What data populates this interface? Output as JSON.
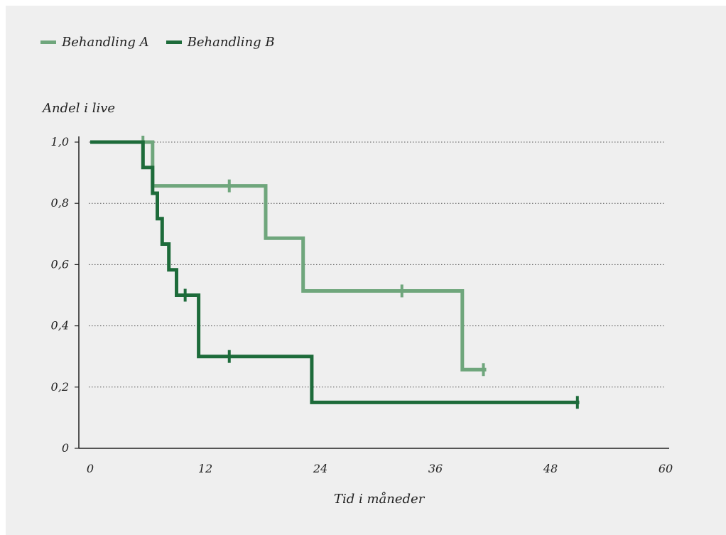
{
  "chart_data": {
    "type": "line",
    "step": true,
    "xlabel": "Tid i måneder",
    "ylabel": "Andel i live",
    "xlim": [
      0,
      60
    ],
    "ylim": [
      0,
      1.0
    ],
    "xticks": [
      0,
      12,
      24,
      36,
      48,
      60
    ],
    "xtick_labels": [
      "0",
      "12",
      "24",
      "36",
      "48",
      "60"
    ],
    "yticks": [
      0,
      0.2,
      0.4,
      0.6,
      0.8,
      1.0
    ],
    "ytick_labels": [
      "0",
      "0,2",
      "0,4",
      "0,6",
      "0,8",
      "1,0"
    ],
    "grid": "horizontal dotted",
    "legend_position": "top-left",
    "series": [
      {
        "name": "Behandling A",
        "color": "#6fa67c",
        "x": [
          0,
          6.5,
          6.5,
          18.3,
          18.3,
          22.2,
          22.2,
          38.8,
          38.8,
          41.3
        ],
        "y": [
          1.0,
          1.0,
          0.857,
          0.857,
          0.686,
          0.686,
          0.514,
          0.514,
          0.257,
          0.257
        ],
        "censored": [
          {
            "x": 5.5,
            "y": 1.0
          },
          {
            "x": 14.5,
            "y": 0.857
          },
          {
            "x": 32.5,
            "y": 0.514
          },
          {
            "x": 41.0,
            "y": 0.257
          }
        ]
      },
      {
        "name": "Behandling B",
        "color": "#1d6b3a",
        "x": [
          0,
          5.5,
          5.5,
          6.5,
          6.5,
          7.0,
          7.0,
          7.5,
          7.5,
          8.2,
          8.2,
          9.0,
          9.0,
          11.3,
          11.3,
          23.1,
          23.1,
          51.0
        ],
        "y": [
          1.0,
          1.0,
          0.917,
          0.917,
          0.833,
          0.833,
          0.75,
          0.75,
          0.667,
          0.667,
          0.583,
          0.583,
          0.5,
          0.5,
          0.3,
          0.3,
          0.15,
          0.15
        ],
        "censored": [
          {
            "x": 9.9,
            "y": 0.5
          },
          {
            "x": 14.5,
            "y": 0.3
          },
          {
            "x": 50.8,
            "y": 0.15
          }
        ]
      }
    ]
  }
}
